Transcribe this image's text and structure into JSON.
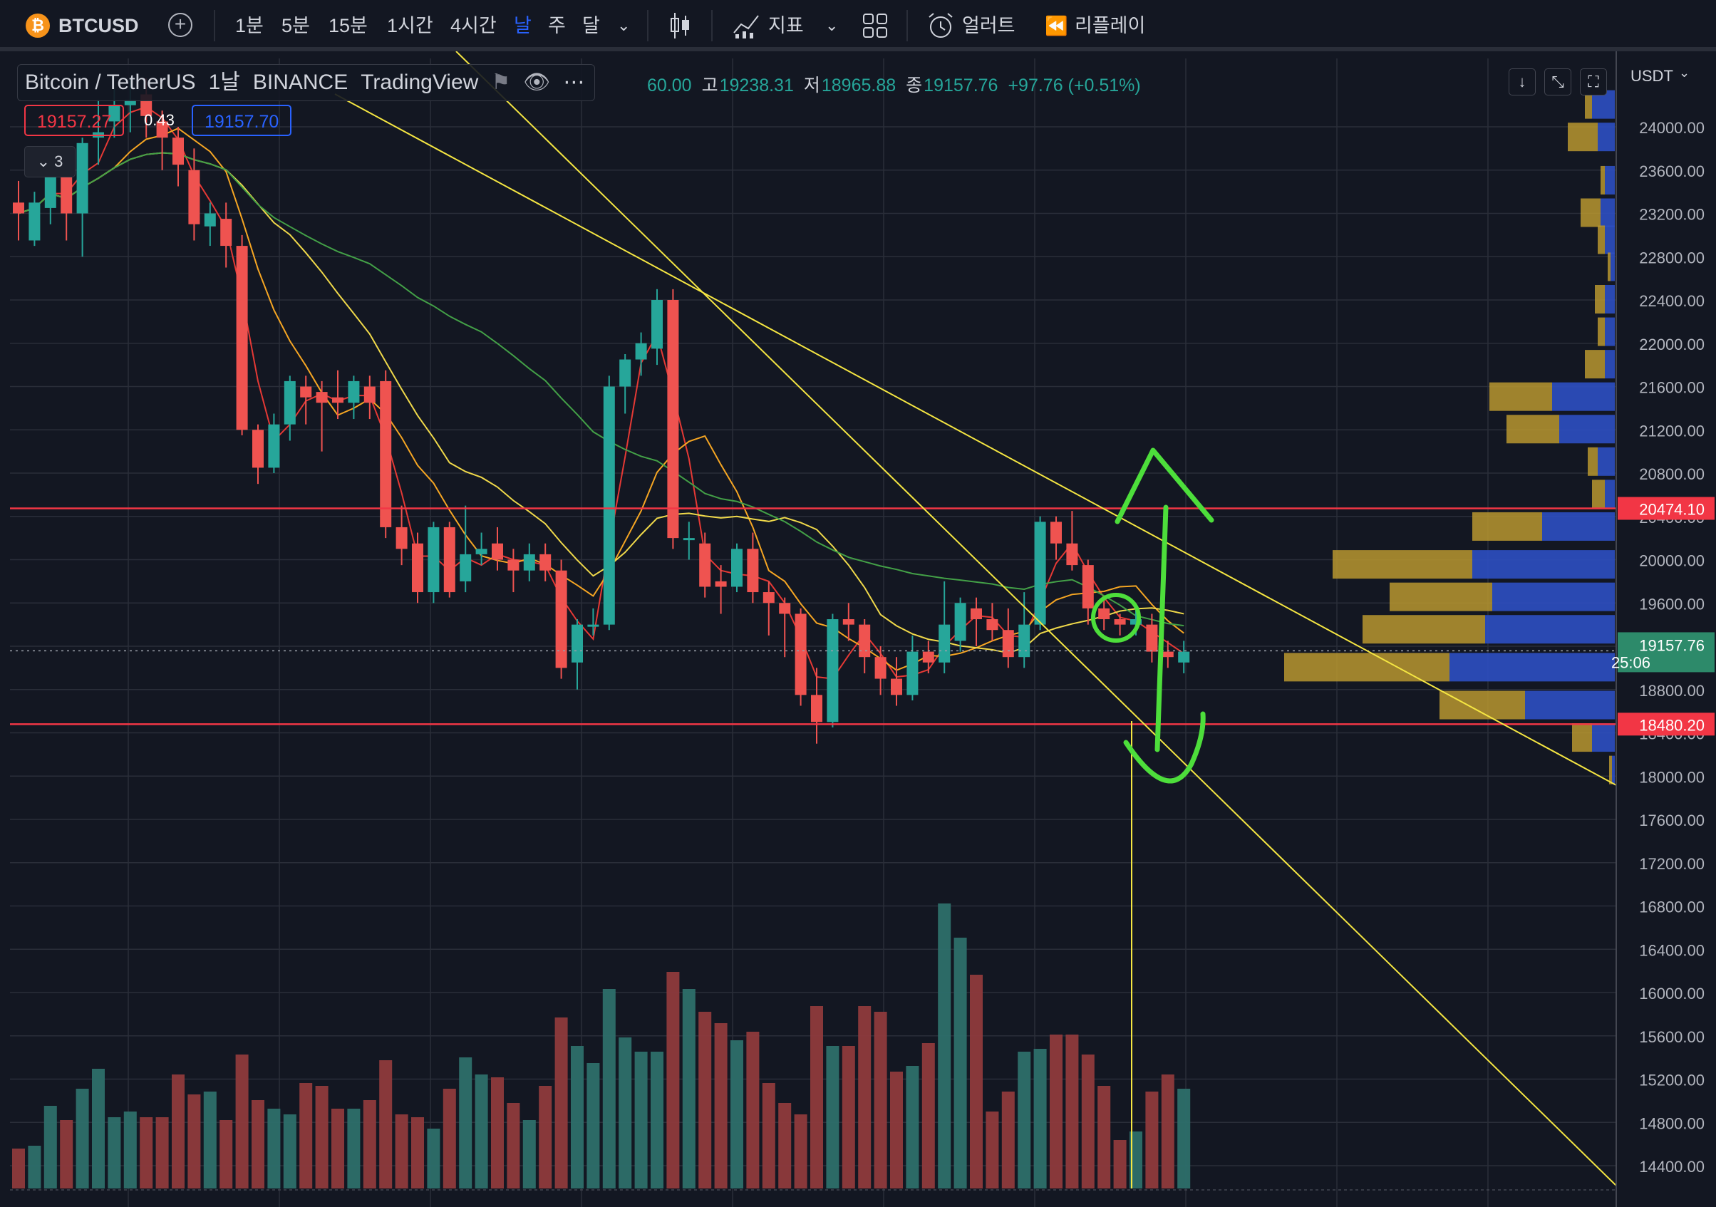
{
  "toolbar": {
    "symbol": "BTCUSD",
    "timeframes": [
      "1분",
      "5분",
      "15분",
      "1시간",
      "4시간",
      "날",
      "주",
      "달"
    ],
    "active_timeframe": "날",
    "indicators_label": "지표",
    "alerts_label": "얼러트",
    "replay_label": "리플레이"
  },
  "legend": {
    "pair": "Bitcoin / TetherUS",
    "interval": "1날",
    "exchange": "BINANCE",
    "source": "TradingView",
    "ohlc_open_partial": "60.00",
    "high_label": "고",
    "high": "19238.31",
    "low_label": "저",
    "low": "18965.88",
    "close_label": "종",
    "close": "19157.76",
    "change": "+97.76 (+0.51%)",
    "sell_price": "19157.27",
    "spread": "0.43",
    "buy_price": "19157.70",
    "collapsed_count": "3"
  },
  "colors": {
    "background": "#131722",
    "up": "#26a69a",
    "down": "#ef5350",
    "support_line": "#f23645",
    "trendline": "#f5e642",
    "annotation": "#4dde3b",
    "vp_up": "#2e4fc2",
    "vp_down": "#b8962f"
  },
  "chart_data": {
    "type": "candlestick",
    "quote_currency": "USDT",
    "ylim": [
      14200,
      24400
    ],
    "y_ticks": [
      14400,
      14800,
      15200,
      15600,
      16000,
      16400,
      16800,
      17200,
      17600,
      18000,
      18400,
      18800,
      19200,
      19600,
      20000,
      20400,
      20800,
      21200,
      21600,
      22000,
      22400,
      22800,
      23200,
      23600,
      24000
    ],
    "last_price": "19157.76",
    "countdown": "25:06",
    "horizontal_levels": [
      {
        "price": 20474.1,
        "label": "20474.10"
      },
      {
        "price": 18480.2,
        "label": "18480.20"
      }
    ],
    "candles": [
      [
        23300,
        23200,
        23500,
        22950
      ],
      [
        22950,
        23300,
        23400,
        22900
      ],
      [
        23250,
        23650,
        23700,
        23100
      ],
      [
        23650,
        23200,
        23700,
        22950
      ],
      [
        23200,
        23850,
        23900,
        22800
      ],
      [
        23900,
        23950,
        24250,
        23650
      ],
      [
        24050,
        24200,
        24350,
        23900
      ],
      [
        24200,
        24250,
        24450,
        23950
      ],
      [
        24300,
        24100,
        24450,
        23900
      ],
      [
        24050,
        23900,
        24150,
        23600
      ],
      [
        23900,
        23650,
        24000,
        23450
      ],
      [
        23600,
        23100,
        23800,
        22950
      ],
      [
        23080,
        23200,
        23300,
        22900
      ],
      [
        23150,
        22900,
        23300,
        22700
      ],
      [
        22900,
        21200,
        23000,
        21150
      ],
      [
        21200,
        20850,
        21250,
        20700
      ],
      [
        20850,
        21250,
        21350,
        20800
      ],
      [
        21250,
        21650,
        21700,
        21100
      ],
      [
        21600,
        21500,
        21700,
        21250
      ],
      [
        21550,
        21450,
        21650,
        21000
      ],
      [
        21500,
        21450,
        21750,
        21300
      ],
      [
        21450,
        21650,
        21700,
        21300
      ],
      [
        21600,
        21450,
        21700,
        21300
      ],
      [
        21650,
        20300,
        21750,
        20200
      ],
      [
        20300,
        20100,
        20500,
        19950
      ],
      [
        20150,
        19700,
        20250,
        19600
      ],
      [
        19700,
        20300,
        20350,
        19600
      ],
      [
        20300,
        19700,
        20350,
        19650
      ],
      [
        19800,
        20050,
        20500,
        19700
      ],
      [
        20050,
        20100,
        20250,
        19950
      ],
      [
        20150,
        20000,
        20300,
        19900
      ],
      [
        20000,
        19900,
        20100,
        19700
      ],
      [
        19900,
        20050,
        20150,
        19800
      ],
      [
        20050,
        19900,
        20150,
        19800
      ],
      [
        19900,
        19000,
        20000,
        18900
      ],
      [
        19050,
        19400,
        19450,
        18800
      ],
      [
        19400,
        19400,
        19550,
        19300
      ],
      [
        19400,
        21600,
        21700,
        19350
      ],
      [
        21600,
        21850,
        21900,
        21350
      ],
      [
        21850,
        22000,
        22100,
        21700
      ],
      [
        21950,
        22400,
        22500,
        21800
      ],
      [
        22400,
        20200,
        22500,
        20100
      ],
      [
        20200,
        20200,
        20350,
        20000
      ],
      [
        20150,
        19750,
        20250,
        19650
      ],
      [
        19800,
        19750,
        19950,
        19500
      ],
      [
        19750,
        20100,
        20150,
        19700
      ],
      [
        20100,
        19700,
        20250,
        19600
      ],
      [
        19700,
        19600,
        19800,
        19300
      ],
      [
        19600,
        19500,
        19650,
        19100
      ],
      [
        19500,
        18750,
        19550,
        18650
      ],
      [
        18750,
        18500,
        19000,
        18300
      ],
      [
        18500,
        19450,
        19500,
        18450
      ],
      [
        19450,
        19400,
        19600,
        19250
      ],
      [
        19400,
        19100,
        19450,
        18950
      ],
      [
        19100,
        18900,
        19200,
        18750
      ],
      [
        18900,
        18750,
        19100,
        18650
      ],
      [
        18750,
        19150,
        19300,
        18700
      ],
      [
        19150,
        19050,
        19250,
        18950
      ],
      [
        19050,
        19400,
        19800,
        18950
      ],
      [
        19250,
        19600,
        19650,
        19150
      ],
      [
        19550,
        19450,
        19650,
        19200
      ],
      [
        19450,
        19350,
        19600,
        19250
      ],
      [
        19350,
        19100,
        19550,
        19000
      ],
      [
        19100,
        19400,
        19700,
        19000
      ],
      [
        19400,
        20350,
        20400,
        19350
      ],
      [
        20350,
        20150,
        20400,
        20000
      ],
      [
        20150,
        19950,
        20450,
        19900
      ],
      [
        19950,
        19550,
        20000,
        19400
      ],
      [
        19550,
        19450,
        19650,
        19350
      ],
      [
        19450,
        19400,
        19500,
        19300
      ],
      [
        19400,
        19450,
        19550,
        19300
      ],
      [
        19400,
        19150,
        19500,
        19050
      ],
      [
        19150,
        19100,
        19250,
        19000
      ],
      [
        19050,
        19150,
        19250,
        18950
      ]
    ],
    "volume": [
      0.14,
      0.15,
      0.29,
      0.24,
      0.35,
      0.42,
      0.25,
      0.27,
      0.25,
      0.25,
      0.4,
      0.33,
      0.34,
      0.24,
      0.47,
      0.31,
      0.28,
      0.26,
      0.37,
      0.36,
      0.28,
      0.28,
      0.31,
      0.45,
      0.26,
      0.25,
      0.21,
      0.35,
      0.46,
      0.4,
      0.39,
      0.3,
      0.24,
      0.36,
      0.6,
      0.5,
      0.44,
      0.7,
      0.53,
      0.48,
      0.48,
      0.76,
      0.7,
      0.62,
      0.58,
      0.52,
      0.55,
      0.37,
      0.3,
      0.26,
      0.64,
      0.5,
      0.5,
      0.64,
      0.62,
      0.41,
      0.43,
      0.51,
      1.0,
      0.88,
      0.75,
      0.27,
      0.34,
      0.48,
      0.49,
      0.54,
      0.54,
      0.47,
      0.36,
      0.17,
      0.2,
      0.34,
      0.4,
      0.35
    ],
    "volume_profile": [
      {
        "price": 24200,
        "up": 0.16,
        "down": 0.05
      },
      {
        "price": 23900,
        "up": 0.12,
        "down": 0.21
      },
      {
        "price": 23500,
        "up": 0.07,
        "down": 0.03
      },
      {
        "price": 23200,
        "up": 0.1,
        "down": 0.14
      },
      {
        "price": 22950,
        "up": 0.07,
        "down": 0.05
      },
      {
        "price": 22700,
        "up": 0.03,
        "down": 0.02
      },
      {
        "price": 22400,
        "up": 0.07,
        "down": 0.07
      },
      {
        "price": 22100,
        "up": 0.07,
        "down": 0.05
      },
      {
        "price": 21800,
        "up": 0.07,
        "down": 0.14
      },
      {
        "price": 21500,
        "up": 0.44,
        "down": 0.44
      },
      {
        "price": 21200,
        "up": 0.39,
        "down": 0.37
      },
      {
        "price": 20900,
        "up": 0.12,
        "down": 0.07
      },
      {
        "price": 20600,
        "up": 0.07,
        "down": 0.09
      },
      {
        "price": 20300,
        "up": 0.51,
        "down": 0.49
      },
      {
        "price": 19950,
        "up": 1.0,
        "down": 0.98
      },
      {
        "price": 19650,
        "up": 0.86,
        "down": 0.72
      },
      {
        "price": 19350,
        "up": 0.91,
        "down": 0.86
      },
      {
        "price": 19000,
        "up": 1.16,
        "down": 1.16
      },
      {
        "price": 18650,
        "up": 0.63,
        "down": 0.6
      },
      {
        "price": 18350,
        "up": 0.16,
        "down": 0.14
      },
      {
        "price": 18050,
        "up": 0.02,
        "down": 0.02
      }
    ]
  }
}
